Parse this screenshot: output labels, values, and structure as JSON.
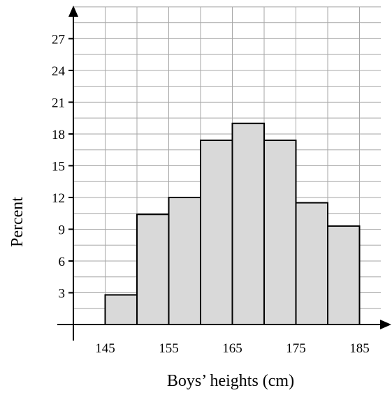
{
  "chart_data": {
    "type": "bar",
    "subtype": "histogram",
    "xlabel": "Boys’ heights (cm)",
    "ylabel": "Percent",
    "bin_width": 5,
    "bins": [
      {
        "start": 145,
        "end": 150,
        "value": 2.8
      },
      {
        "start": 150,
        "end": 155,
        "value": 10.4
      },
      {
        "start": 155,
        "end": 160,
        "value": 12.0
      },
      {
        "start": 160,
        "end": 165,
        "value": 17.4
      },
      {
        "start": 165,
        "end": 170,
        "value": 19.0
      },
      {
        "start": 170,
        "end": 175,
        "value": 17.4
      },
      {
        "start": 175,
        "end": 180,
        "value": 11.5
      },
      {
        "start": 180,
        "end": 185,
        "value": 9.3
      }
    ],
    "xticks": [
      145,
      155,
      165,
      175,
      185
    ],
    "yticks": [
      3,
      6,
      9,
      12,
      15,
      18,
      21,
      24,
      27
    ],
    "xlim": [
      135,
      190
    ],
    "ylim": [
      0,
      30
    ],
    "grid": true,
    "grid_x_step": 5,
    "grid_y_step": 1.5,
    "colors": {
      "bar_fill": "#d9d9d9",
      "bar_stroke": "#000000",
      "grid": "#a6a6a6",
      "axis": "#000000"
    }
  }
}
